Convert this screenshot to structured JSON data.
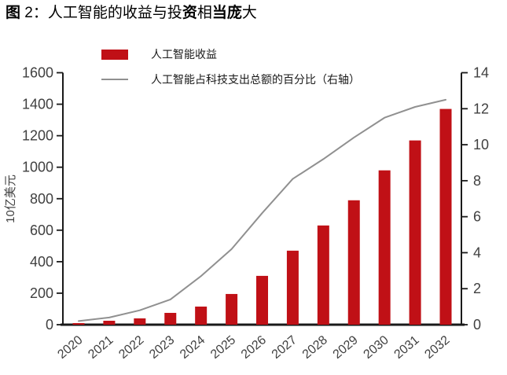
{
  "title": {
    "full_text": "图 2：人工智能的收益与投资相当庞大",
    "segments": [
      {
        "text": "图",
        "bold": true
      },
      {
        "text": " 2：人工智能的收益与投",
        "bold": false
      },
      {
        "text": "资",
        "bold": true
      },
      {
        "text": "相",
        "bold": false
      },
      {
        "text": "当庞",
        "bold": true
      },
      {
        "text": "大",
        "bold": false
      }
    ]
  },
  "legend": {
    "items": [
      {
        "label": "人工智能收益",
        "marker": "bar",
        "color": "#c01016"
      },
      {
        "label": "人工智能占科技支出总额的百分比（右轴）",
        "marker": "line",
        "color": "#909090"
      }
    ]
  },
  "chart_data": {
    "type": "bar",
    "categories": [
      "2020",
      "2021",
      "2022",
      "2023",
      "2024",
      "2025",
      "2026",
      "2027",
      "2028",
      "2029",
      "2030",
      "2031",
      "2032"
    ],
    "series": [
      {
        "name": "人工智能收益",
        "type": "bar",
        "axis": "left",
        "color": "#c01016",
        "values": [
          10,
          25,
          40,
          75,
          115,
          195,
          310,
          470,
          630,
          790,
          980,
          1170,
          1370
        ]
      },
      {
        "name": "人工智能占科技支出总额的百分比（右轴）",
        "type": "line",
        "axis": "right",
        "color": "#909090",
        "values": [
          0.2,
          0.4,
          0.8,
          1.4,
          2.7,
          4.2,
          6.2,
          8.1,
          9.2,
          10.4,
          11.5,
          12.1,
          12.5
        ]
      }
    ],
    "left_axis": {
      "title": "10亿美元",
      "min": 0,
      "max": 1600,
      "step": 200
    },
    "right_axis": {
      "title": "",
      "min": 0,
      "max": 14,
      "step": 2
    },
    "grid": false,
    "legend_position": "top-left",
    "x_label_rotation": -40
  },
  "colors": {
    "axis": "#1a1a1a",
    "tick_label": "#404040",
    "title_text": "#000000"
  }
}
